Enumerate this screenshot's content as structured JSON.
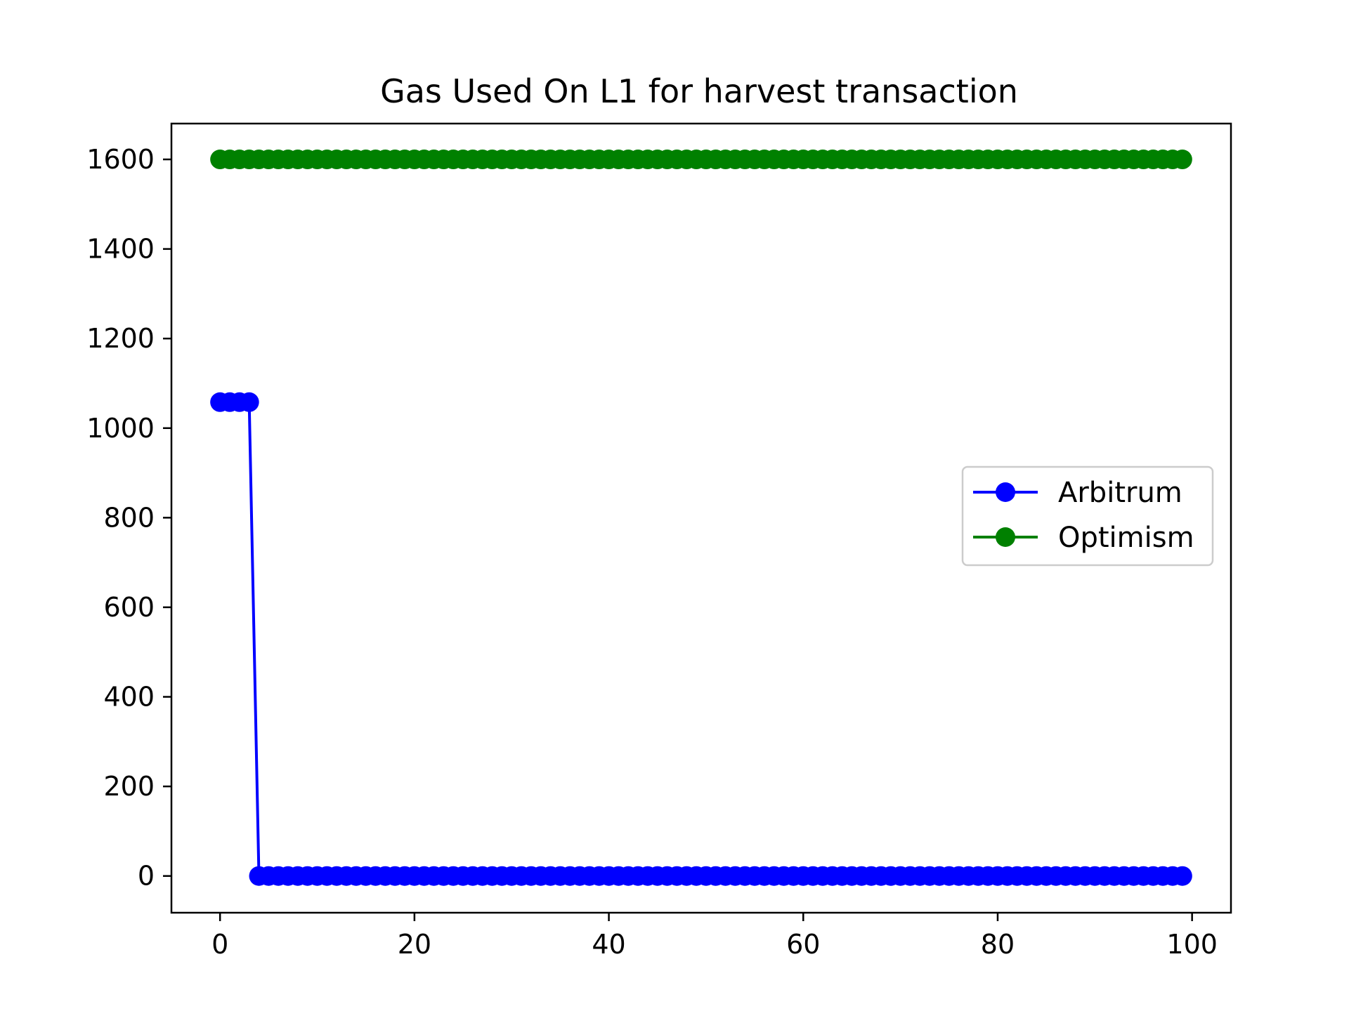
{
  "chart_data": {
    "type": "line",
    "title": "Gas Used On L1 for harvest transaction",
    "xlabel": "",
    "ylabel": "",
    "xlim": [
      -5,
      104
    ],
    "ylim": [
      -82,
      1680
    ],
    "xticks": [
      0,
      20,
      40,
      60,
      80,
      100
    ],
    "yticks": [
      0,
      200,
      400,
      600,
      800,
      1000,
      1200,
      1400,
      1600
    ],
    "grid": false,
    "legend": {
      "position": "center-right"
    },
    "x": [
      0,
      1,
      2,
      3,
      4,
      5,
      6,
      7,
      8,
      9,
      10,
      11,
      12,
      13,
      14,
      15,
      16,
      17,
      18,
      19,
      20,
      21,
      22,
      23,
      24,
      25,
      26,
      27,
      28,
      29,
      30,
      31,
      32,
      33,
      34,
      35,
      36,
      37,
      38,
      39,
      40,
      41,
      42,
      43,
      44,
      45,
      46,
      47,
      48,
      49,
      50,
      51,
      52,
      53,
      54,
      55,
      56,
      57,
      58,
      59,
      60,
      61,
      62,
      63,
      64,
      65,
      66,
      67,
      68,
      69,
      70,
      71,
      72,
      73,
      74,
      75,
      76,
      77,
      78,
      79,
      80,
      81,
      82,
      83,
      84,
      85,
      86,
      87,
      88,
      89,
      90,
      91,
      92,
      93,
      94,
      95,
      96,
      97,
      98,
      99
    ],
    "series": [
      {
        "name": "Arbitrum",
        "color": "#0000ff",
        "marker": "circle",
        "values": [
          1058,
          1058,
          1058,
          1058,
          0,
          0,
          0,
          0,
          0,
          0,
          0,
          0,
          0,
          0,
          0,
          0,
          0,
          0,
          0,
          0,
          0,
          0,
          0,
          0,
          0,
          0,
          0,
          0,
          0,
          0,
          0,
          0,
          0,
          0,
          0,
          0,
          0,
          0,
          0,
          0,
          0,
          0,
          0,
          0,
          0,
          0,
          0,
          0,
          0,
          0,
          0,
          0,
          0,
          0,
          0,
          0,
          0,
          0,
          0,
          0,
          0,
          0,
          0,
          0,
          0,
          0,
          0,
          0,
          0,
          0,
          0,
          0,
          0,
          0,
          0,
          0,
          0,
          0,
          0,
          0,
          0,
          0,
          0,
          0,
          0,
          0,
          0,
          0,
          0,
          0,
          0,
          0,
          0,
          0,
          0,
          0,
          0,
          0,
          0,
          0
        ]
      },
      {
        "name": "Optimism",
        "color": "#008000",
        "marker": "circle",
        "values": [
          1600,
          1600,
          1600,
          1600,
          1600,
          1600,
          1600,
          1600,
          1600,
          1600,
          1600,
          1600,
          1600,
          1600,
          1600,
          1600,
          1600,
          1600,
          1600,
          1600,
          1600,
          1600,
          1600,
          1600,
          1600,
          1600,
          1600,
          1600,
          1600,
          1600,
          1600,
          1600,
          1600,
          1600,
          1600,
          1600,
          1600,
          1600,
          1600,
          1600,
          1600,
          1600,
          1600,
          1600,
          1600,
          1600,
          1600,
          1600,
          1600,
          1600,
          1600,
          1600,
          1600,
          1600,
          1600,
          1600,
          1600,
          1600,
          1600,
          1600,
          1600,
          1600,
          1600,
          1600,
          1600,
          1600,
          1600,
          1600,
          1600,
          1600,
          1600,
          1600,
          1600,
          1600,
          1600,
          1600,
          1600,
          1600,
          1600,
          1600,
          1600,
          1600,
          1600,
          1600,
          1600,
          1600,
          1600,
          1600,
          1600,
          1600,
          1600,
          1600,
          1600,
          1600,
          1600,
          1600,
          1600,
          1600,
          1600,
          1600
        ]
      }
    ]
  }
}
